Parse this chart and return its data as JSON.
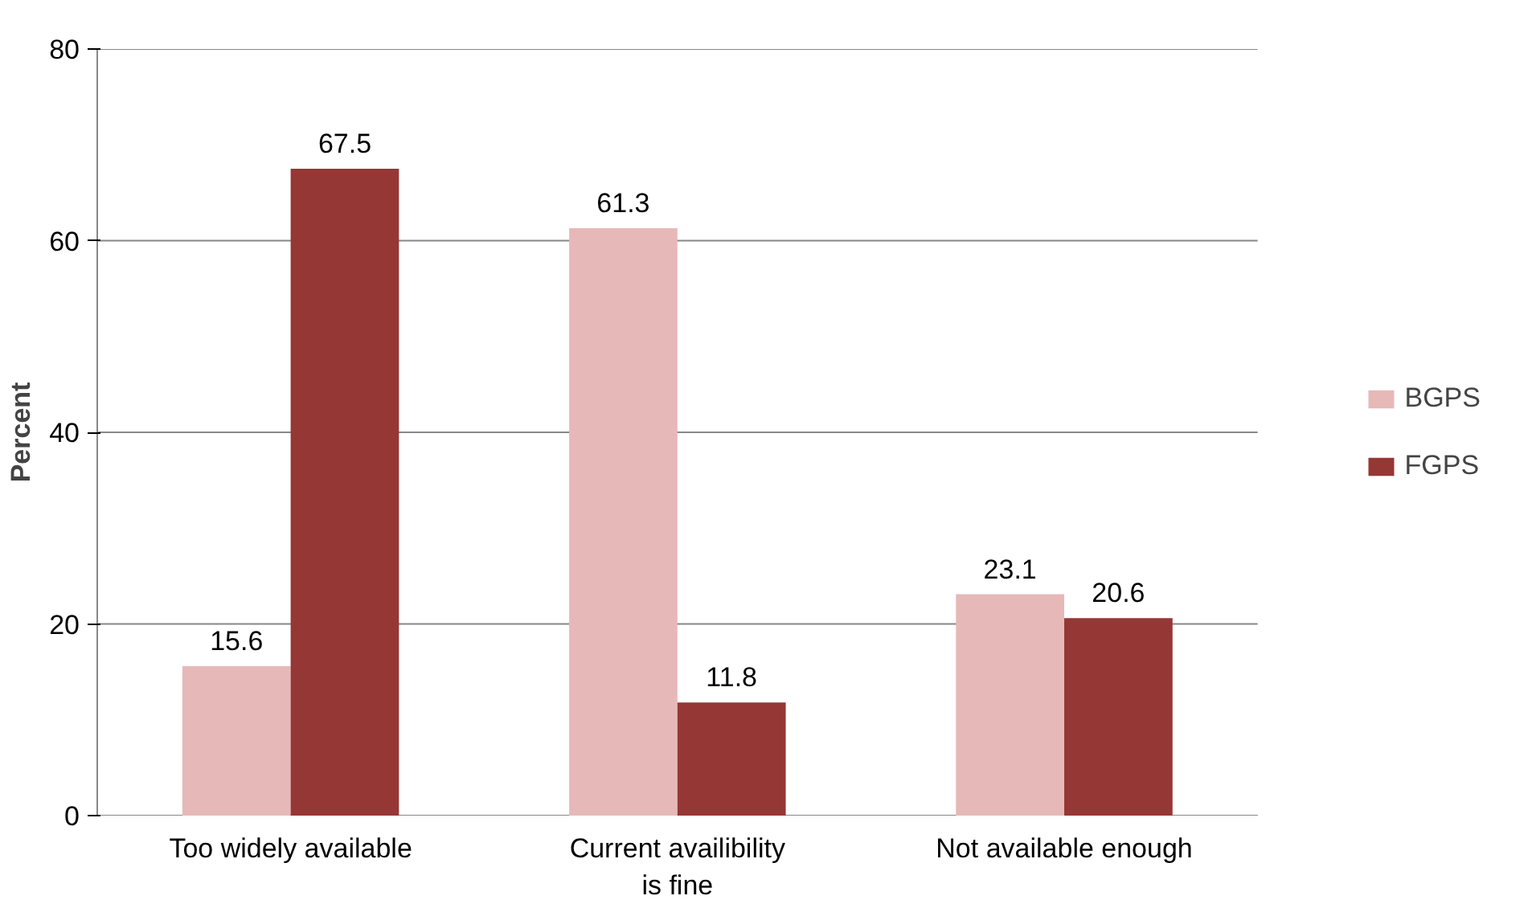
{
  "chart_data": {
    "type": "bar",
    "ylabel": "Percent",
    "categories": [
      "Too widely available",
      "Current availibility is fine",
      "Not available enough"
    ],
    "series": [
      {
        "name": "BGPS",
        "color": "#e6b9b8",
        "values": [
          15.6,
          61.3,
          23.1
        ]
      },
      {
        "name": "FGPS",
        "color": "#953735",
        "values": [
          67.5,
          11.8,
          20.6
        ]
      }
    ],
    "ylim": [
      0,
      80
    ],
    "yticks": [
      0,
      20,
      40,
      60,
      80
    ],
    "grid": "y",
    "legend": "right",
    "data_labels": true
  }
}
